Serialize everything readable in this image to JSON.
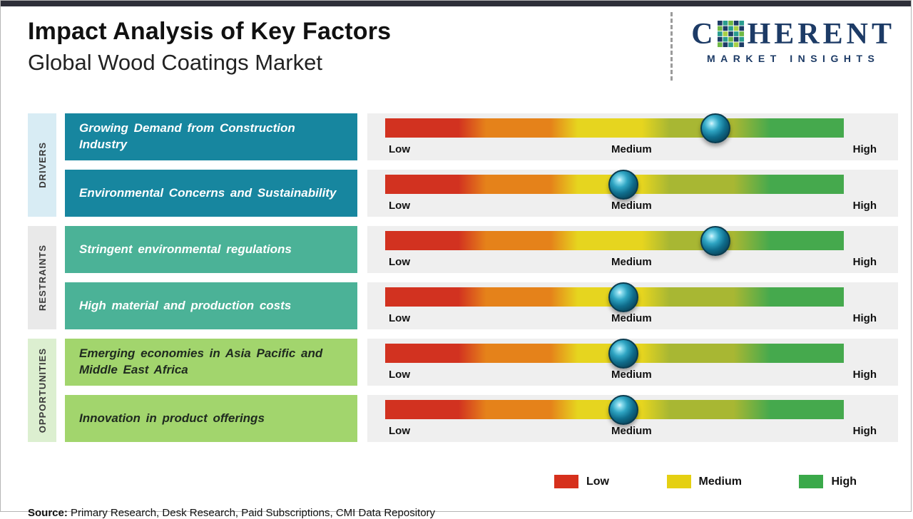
{
  "palette": {
    "drivers_box": "#17869f",
    "restraints_box": "#4bb297",
    "opportunities_box": "#a2d56d",
    "drivers_tab_bg": "#d8ecf4",
    "restraints_tab_bg": "#e9e9e9",
    "opportunities_tab_bg": "#dcefd0",
    "gauge_track_bg": "#efefef",
    "marker_sphere": "#0d5a74",
    "logo_navy": "#1d3b66"
  },
  "header": {
    "title": "Impact Analysis of Key Factors",
    "subtitle": "Global Wood Coatings Market"
  },
  "logo": {
    "word_start": "C",
    "word_end": "HERENT",
    "tagline": "MARKET INSIGHTS"
  },
  "scale": {
    "low": "Low",
    "medium": "Medium",
    "high": "High"
  },
  "groups": [
    {
      "label": "DRIVERS"
    },
    {
      "label": "RESTRAINTS"
    },
    {
      "label": "OPPORTUNITIES"
    }
  ],
  "chart_data": {
    "type": "bar",
    "title": "Impact Analysis of Key Factors",
    "subtitle": "Global Wood Coatings Market",
    "x_axis": {
      "type": "qualitative",
      "labels": [
        "Low",
        "Medium",
        "High"
      ],
      "range": [
        0,
        1
      ]
    },
    "gradient_colors": [
      "#d23220",
      "#e5821a",
      "#e6d51f",
      "#a8b733",
      "#45a94d"
    ],
    "rows": [
      {
        "group": "Drivers",
        "factor": "Growing Demand from Construction Industry",
        "impact_position": 0.72,
        "impact_level": "Medium-High"
      },
      {
        "group": "Drivers",
        "factor": "Environmental Concerns and Sustainability",
        "impact_position": 0.52,
        "impact_level": "Medium"
      },
      {
        "group": "Restraints",
        "factor": "Stringent environmental regulations",
        "impact_position": 0.72,
        "impact_level": "Medium-High"
      },
      {
        "group": "Restraints",
        "factor": "High material and production costs",
        "impact_position": 0.52,
        "impact_level": "Medium"
      },
      {
        "group": "Opportunities",
        "factor": "Emerging economies in Asia Pacific and Middle East Africa",
        "impact_position": 0.52,
        "impact_level": "Medium"
      },
      {
        "group": "Opportunities",
        "factor": "Innovation in product offerings",
        "impact_position": 0.52,
        "impact_level": "Medium"
      }
    ]
  },
  "legend": {
    "items": [
      {
        "label": "Low",
        "color": "#d6301c"
      },
      {
        "label": "Medium",
        "color": "#e5d012"
      },
      {
        "label": "High",
        "color": "#3aa94a"
      }
    ]
  },
  "footer": {
    "source_label": "Source:",
    "source_text": " Primary Research, Desk Research, Paid Subscriptions, CMI Data Repository"
  }
}
